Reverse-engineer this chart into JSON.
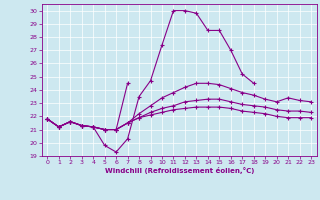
{
  "xlabel": "Windchill (Refroidissement éolien,°C)",
  "bg_color": "#cde8f0",
  "line_color": "#880088",
  "ylim": [
    19,
    30.5
  ],
  "xlim": [
    -0.5,
    23.5
  ],
  "yticks": [
    19,
    20,
    21,
    22,
    23,
    24,
    25,
    26,
    27,
    28,
    29,
    30
  ],
  "xticks": [
    0,
    1,
    2,
    3,
    4,
    5,
    6,
    7,
    8,
    9,
    10,
    11,
    12,
    13,
    14,
    15,
    16,
    17,
    18,
    19,
    20,
    21,
    22,
    23
  ],
  "series": [
    [
      21.8,
      21.2,
      21.6,
      21.3,
      21.2,
      19.8,
      19.3,
      20.3,
      23.5,
      24.7,
      27.4,
      30.0,
      30.0,
      29.8,
      28.5,
      28.5,
      27.0,
      25.2,
      24.5,
      null,
      null,
      null,
      null,
      null
    ],
    [
      21.8,
      21.2,
      21.6,
      21.3,
      21.2,
      21.0,
      21.0,
      24.5,
      null,
      null,
      null,
      null,
      null,
      null,
      null,
      null,
      null,
      null,
      null,
      null,
      null,
      null,
      null,
      null
    ],
    [
      21.8,
      21.2,
      21.6,
      21.3,
      21.2,
      21.0,
      21.0,
      21.5,
      22.2,
      22.8,
      23.4,
      23.8,
      24.2,
      24.5,
      24.5,
      24.4,
      24.1,
      23.8,
      23.6,
      23.3,
      23.1,
      23.4,
      23.2,
      23.1
    ],
    [
      21.8,
      21.2,
      21.6,
      21.3,
      21.2,
      21.0,
      21.0,
      21.5,
      21.9,
      22.3,
      22.6,
      22.8,
      23.1,
      23.2,
      23.3,
      23.3,
      23.1,
      22.9,
      22.8,
      22.7,
      22.5,
      22.4,
      22.4,
      22.3
    ],
    [
      21.8,
      21.2,
      21.6,
      21.3,
      21.2,
      21.0,
      21.0,
      21.5,
      21.9,
      22.1,
      22.3,
      22.5,
      22.6,
      22.7,
      22.7,
      22.7,
      22.6,
      22.4,
      22.3,
      22.2,
      22.0,
      21.9,
      21.9,
      21.9
    ]
  ]
}
